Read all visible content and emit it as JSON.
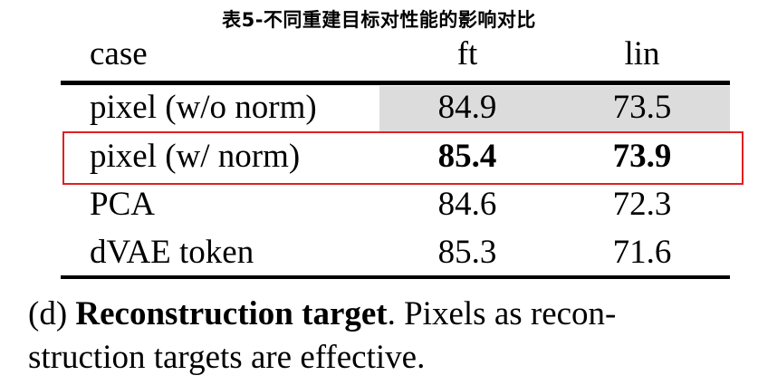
{
  "title": "表5-不同重建目标对性能的影响对比",
  "table": {
    "headers": [
      "case",
      "ft",
      "lin"
    ],
    "rows": [
      {
        "case": "pixel (w/o norm)",
        "ft": "84.9",
        "lin": "73.5",
        "shaded": true
      },
      {
        "case": "pixel (w/ norm)",
        "ft": "85.4",
        "lin": "73.9",
        "bold": true,
        "highlighted": true
      },
      {
        "case": "PCA",
        "ft": "84.6",
        "lin": "72.3"
      },
      {
        "case": "dVAE token",
        "ft": "85.3",
        "lin": "71.6"
      }
    ]
  },
  "caption": {
    "prefix": "(d) ",
    "bold": "Reconstruction target",
    "line1_rest": ".  Pixels as recon-",
    "line2": "struction targets are effective."
  },
  "colors": {
    "highlight_border": "#e02020",
    "baseline_shade": "#dcdcdc"
  }
}
